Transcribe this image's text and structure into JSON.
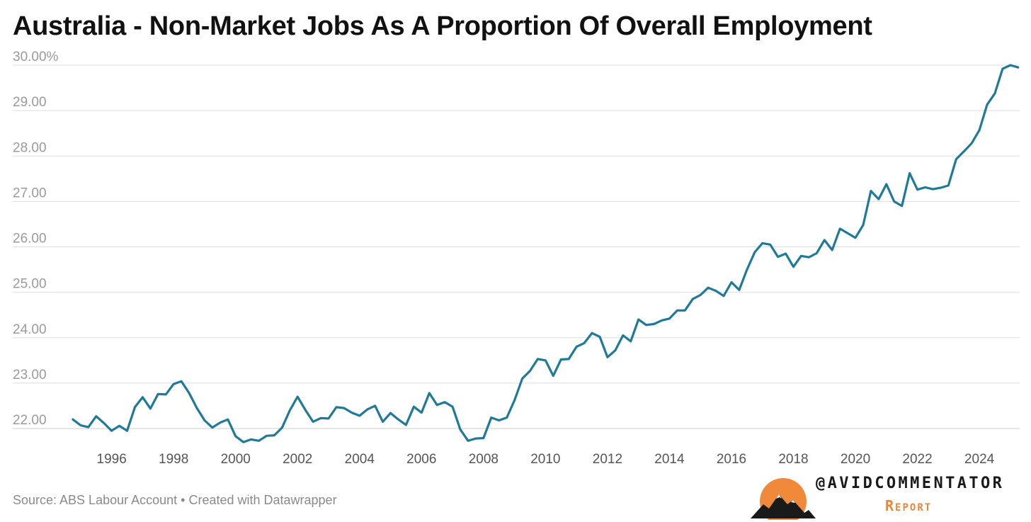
{
  "title": "Australia - Non-Market Jobs As A Proportion Of Overall Employment",
  "footer": "Source: ABS Labour Account • Created with Datawrapper",
  "brand": {
    "handle": "@AVIDCOMMENTATOR",
    "subtitle": "Report",
    "logo_icon": "sun-mountains-logo",
    "colors": {
      "sun": "#f08a3a",
      "mountain": "#1a1a1a"
    }
  },
  "colors": {
    "line": "#1f7a99",
    "grid": "#dddddd",
    "tick_text": "#9a9a9a",
    "year_text": "#555555"
  },
  "chart_data": {
    "type": "line",
    "title": "Australia - Non-Market Jobs As A Proportion Of Overall Employment",
    "xlabel": "",
    "ylabel": "",
    "ylim": [
      22,
      30
    ],
    "xlim": [
      1994.5,
      2025.3
    ],
    "grid": true,
    "y_ticks": [
      "30.00%",
      "29.00",
      "28.00",
      "27.00",
      "26.00",
      "25.00",
      "24.00",
      "23.00",
      "22.00"
    ],
    "y_tick_values": [
      30,
      29,
      28,
      27,
      26,
      25,
      24,
      23,
      22
    ],
    "x_ticks": [
      "1996",
      "1998",
      "2000",
      "2002",
      "2004",
      "2006",
      "2008",
      "2010",
      "2012",
      "2014",
      "2016",
      "2018",
      "2020",
      "2022",
      "2024"
    ],
    "x_tick_values": [
      1996,
      1998,
      2000,
      2002,
      2004,
      2006,
      2008,
      2010,
      2012,
      2014,
      2016,
      2018,
      2020,
      2022,
      2024
    ],
    "x_start": 1994.75,
    "x_step": 0.25,
    "values": [
      22.2,
      22.07,
      22.03,
      22.27,
      22.12,
      21.95,
      22.06,
      21.95,
      22.47,
      22.69,
      22.44,
      22.76,
      22.75,
      22.98,
      23.04,
      22.78,
      22.45,
      22.18,
      22.02,
      22.13,
      22.2,
      21.83,
      21.7,
      21.76,
      21.73,
      21.84,
      21.85,
      22.02,
      22.4,
      22.7,
      22.41,
      22.15,
      22.23,
      22.22,
      22.47,
      22.45,
      22.35,
      22.28,
      22.42,
      22.5,
      22.15,
      22.34,
      22.2,
      22.08,
      22.48,
      22.35,
      22.78,
      22.52,
      22.58,
      22.48,
      21.98,
      21.73,
      21.78,
      21.79,
      22.24,
      22.18,
      22.24,
      22.62,
      23.1,
      23.27,
      23.53,
      23.5,
      23.16,
      23.52,
      23.53,
      23.8,
      23.88,
      24.1,
      24.02,
      23.57,
      23.72,
      24.05,
      23.92,
      24.4,
      24.28,
      24.3,
      24.38,
      24.42,
      24.6,
      24.6,
      24.85,
      24.94,
      25.1,
      25.03,
      24.92,
      25.22,
      25.05,
      25.5,
      25.88,
      26.08,
      26.05,
      25.78,
      25.85,
      25.56,
      25.8,
      25.77,
      25.86,
      26.15,
      25.93,
      26.4,
      26.3,
      26.2,
      26.48,
      27.23,
      27.05,
      27.38,
      27.0,
      26.9,
      27.62,
      27.26,
      27.31,
      27.27,
      27.3,
      27.35,
      27.93,
      28.1,
      28.28,
      28.57,
      29.13,
      29.38,
      29.92,
      30.0,
      29.95
    ]
  }
}
